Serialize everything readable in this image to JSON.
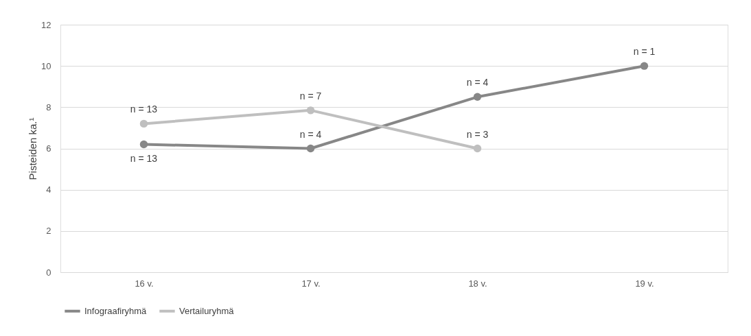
{
  "chart_data": {
    "type": "line",
    "ylabel": "Pisteiden ka.¹",
    "categories": [
      "16 v.",
      "17 v.",
      "18 v.",
      "19 v."
    ],
    "series": [
      {
        "name": "Infograafiryhmä",
        "color": "#878787",
        "values": [
          6.2,
          6.0,
          8.5,
          10.0
        ]
      },
      {
        "name": "Vertailuryhmä",
        "color": "#bfbfbf",
        "values": [
          7.2,
          7.85,
          6.0,
          null
        ]
      }
    ],
    "ylim": [
      0,
      12
    ],
    "yticks": [
      0,
      2,
      4,
      6,
      8,
      10,
      12
    ],
    "grid": "y",
    "legend": "bottom",
    "marker": "circle",
    "line_style": "solid",
    "annotations": [
      {
        "text": "n = 13",
        "x": "16 v.",
        "y": 7.2
      },
      {
        "text": "n = 13",
        "x": "16 v.",
        "y": 6.2
      },
      {
        "text": "n = 7",
        "x": "17 v.",
        "y": 7.85
      },
      {
        "text": "n = 4",
        "x": "17 v.",
        "y": 6.0
      },
      {
        "text": "n = 4",
        "x": "18 v.",
        "y": 8.5
      },
      {
        "text": "n = 3",
        "x": "18 v.",
        "y": 6.0
      },
      {
        "text": "n = 1",
        "x": "19 v.",
        "y": 10.0
      }
    ]
  }
}
